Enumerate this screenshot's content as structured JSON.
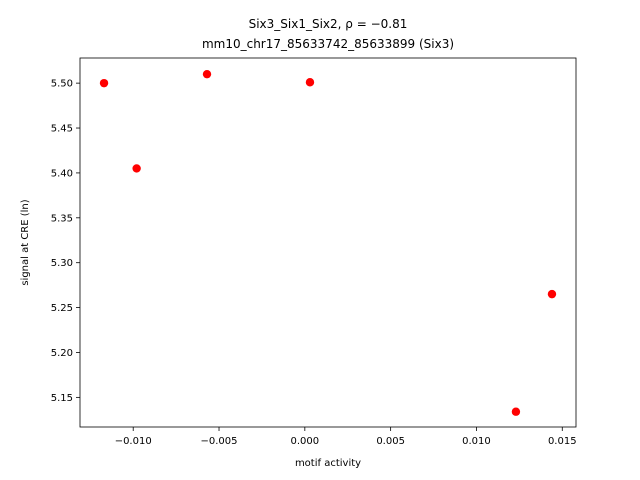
{
  "chart_data": {
    "type": "scatter",
    "title_line1": "Six3_Six1_Six2, ρ = −0.81",
    "title_line2": "mm10_chr17_85633742_85633899 (Six3)",
    "xlabel": "motif activity",
    "ylabel": "signal at CRE (ln)",
    "xlim": [
      -0.0131,
      0.0158
    ],
    "ylim": [
      5.117,
      5.528
    ],
    "xticks": [
      -0.01,
      -0.005,
      0.0,
      0.005,
      0.01,
      0.015
    ],
    "xtick_labels": [
      "−0.010",
      "−0.005",
      "0.000",
      "0.005",
      "0.010",
      "0.015"
    ],
    "yticks": [
      5.15,
      5.2,
      5.25,
      5.3,
      5.35,
      5.4,
      5.45,
      5.5
    ],
    "ytick_labels": [
      "5.15",
      "5.20",
      "5.25",
      "5.30",
      "5.35",
      "5.40",
      "5.45",
      "5.50"
    ],
    "point_color": "#ff0000",
    "grid": false,
    "points": [
      {
        "x": -0.0117,
        "y": 5.5
      },
      {
        "x": -0.0098,
        "y": 5.405
      },
      {
        "x": -0.0057,
        "y": 5.51
      },
      {
        "x": 0.0003,
        "y": 5.501
      },
      {
        "x": 0.0123,
        "y": 5.134
      },
      {
        "x": 0.0144,
        "y": 5.265
      }
    ]
  }
}
